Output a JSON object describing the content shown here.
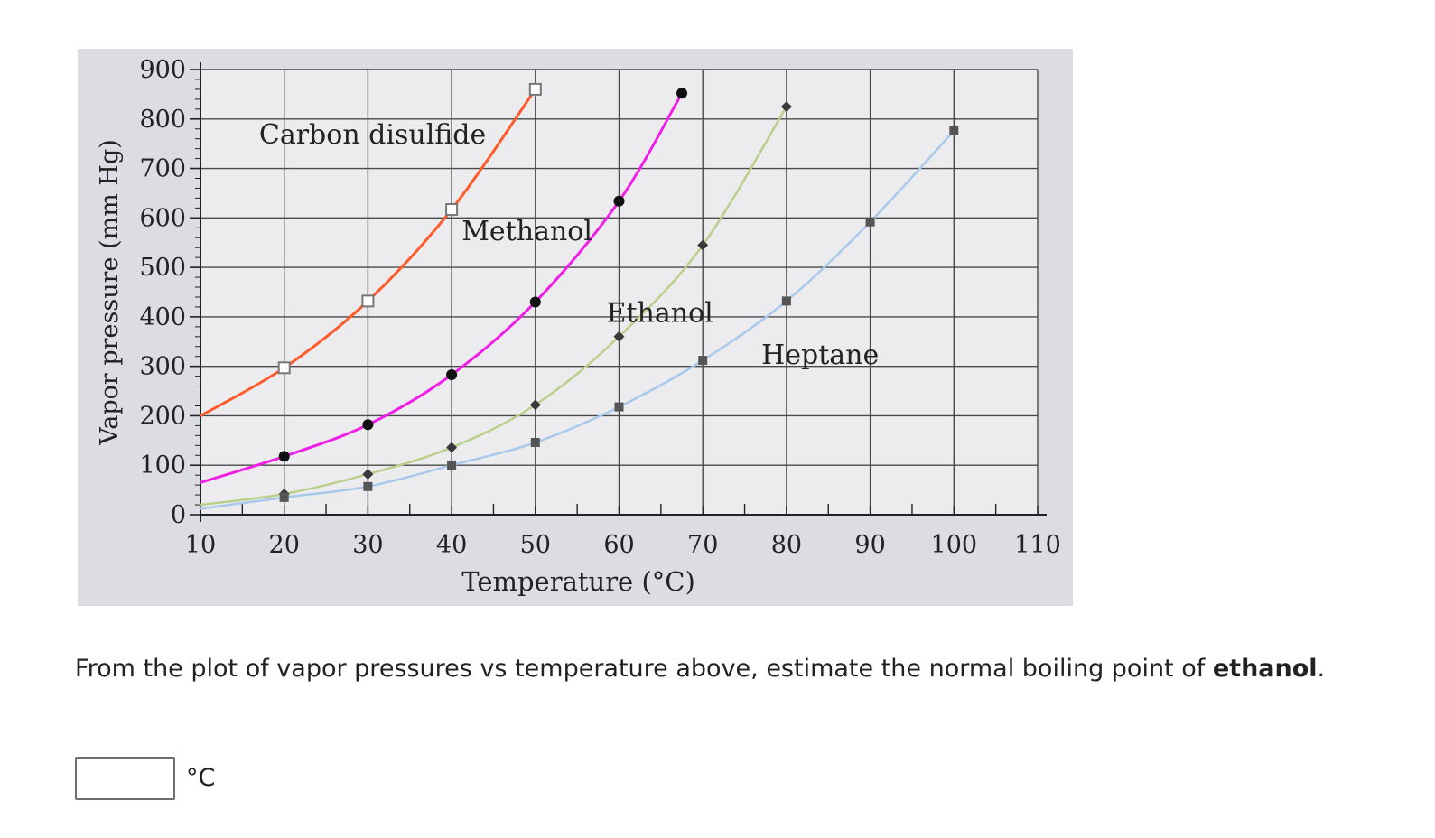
{
  "chart_data": {
    "type": "line",
    "title": "",
    "xlabel": "Temperature (°C)",
    "ylabel": "Vapor pressure (mm Hg)",
    "xlim": [
      10,
      110
    ],
    "ylim": [
      0,
      900
    ],
    "x_ticks": [
      10,
      20,
      30,
      40,
      50,
      60,
      70,
      80,
      90,
      100,
      110
    ],
    "y_ticks": [
      0,
      100,
      200,
      300,
      400,
      500,
      600,
      700,
      800,
      900
    ],
    "grid": true,
    "series": [
      {
        "name": "Carbon disulfide",
        "color": "#ff5a2a",
        "marker": "open-square",
        "curve_x": [
          10,
          20,
          30,
          40,
          50
        ],
        "curve_y": [
          200,
          297,
          432,
          617,
          860
        ],
        "x": [
          20,
          30,
          40,
          50
        ],
        "y": [
          297,
          432,
          617,
          860
        ]
      },
      {
        "name": "Methanol",
        "color": "#f01fe8",
        "marker": "filled-circle",
        "curve_x": [
          10,
          20,
          30,
          40,
          50,
          60,
          67.5
        ],
        "curve_y": [
          65,
          118,
          182,
          283,
          430,
          634,
          852
        ],
        "x": [
          20,
          30,
          40,
          50,
          60,
          67.5
        ],
        "y": [
          118,
          182,
          283,
          430,
          634,
          852
        ]
      },
      {
        "name": "Ethanol",
        "color": "#b9cf8a",
        "marker": "diamond",
        "curve_x": [
          10,
          20,
          30,
          40,
          50,
          60,
          70,
          80
        ],
        "curve_y": [
          20,
          42,
          82,
          136,
          222,
          360,
          545,
          825
        ],
        "x": [
          20,
          30,
          40,
          50,
          60,
          70,
          80
        ],
        "y": [
          42,
          82,
          136,
          222,
          360,
          545,
          825
        ]
      },
      {
        "name": "Heptane",
        "color": "#a8c8ec",
        "marker": "filled-square",
        "curve_x": [
          10,
          20,
          30,
          40,
          50,
          60,
          70,
          80,
          90,
          100
        ],
        "curve_y": [
          12,
          35,
          57,
          100,
          146,
          218,
          312,
          432,
          592,
          776
        ],
        "x": [
          20,
          30,
          40,
          50,
          60,
          70,
          80,
          90,
          100
        ],
        "y": [
          35,
          57,
          100,
          146,
          218,
          312,
          432,
          592,
          776
        ]
      }
    ],
    "annotations": [
      {
        "text": "Carbon disulfide",
        "series": "Carbon disulfide",
        "x": 17,
        "y": 750
      },
      {
        "text": "Methanol",
        "series": "Methanol",
        "x": 41.2,
        "y": 555
      },
      {
        "text": "Ethanol",
        "series": "Ethanol",
        "x": 58.5,
        "y": 390
      },
      {
        "text": "Heptane",
        "series": "Heptane",
        "x": 77,
        "y": 305
      }
    ]
  },
  "question": {
    "text_before": "From the plot of vapor pressures vs temperature above, estimate the normal boiling point of ",
    "emphasis": "ethanol",
    "text_after": "."
  },
  "answer": {
    "value": "",
    "unit": "°C"
  }
}
